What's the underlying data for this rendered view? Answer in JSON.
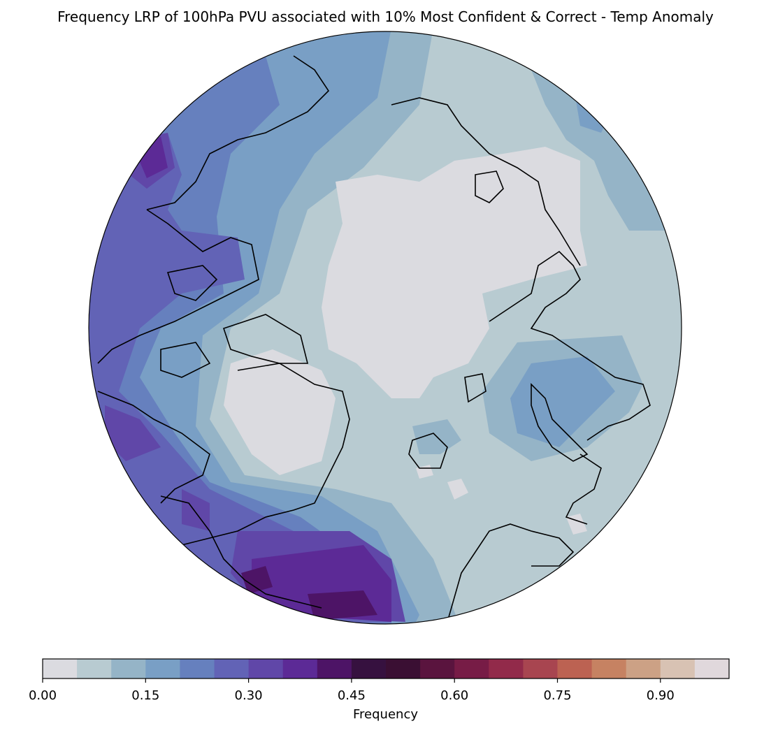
{
  "title": "Frequency LRP of 100hPa PVU associated with 10% Most Confident & Correct - Temp Anomaly",
  "map": {
    "projection": "north-polar-stereographic",
    "outline": "circle",
    "coastlines": true,
    "field": "Frequency LRP of 100hPa PVU"
  },
  "colorbar": {
    "label": "Frequency",
    "range": [
      0.0,
      1.0
    ],
    "step": 0.05,
    "ticks": [
      "0.00",
      "0.15",
      "0.30",
      "0.45",
      "0.60",
      "0.75",
      "0.90"
    ],
    "tick_values": [
      0.0,
      0.15,
      0.3,
      0.45,
      0.6,
      0.75,
      0.9
    ],
    "colors": [
      "#dbdbe0",
      "#b8cbd1",
      "#95b4c7",
      "#799fc5",
      "#6680be",
      "#6263b6",
      "#6047a8",
      "#5c2a96",
      "#4d1466",
      "#36113f",
      "#3a0f33",
      "#5a143e",
      "#771c46",
      "#922a4a",
      "#a84550",
      "#bc6252",
      "#c68262",
      "#cca185",
      "#d8c2b3",
      "#e0d8dc"
    ]
  }
}
